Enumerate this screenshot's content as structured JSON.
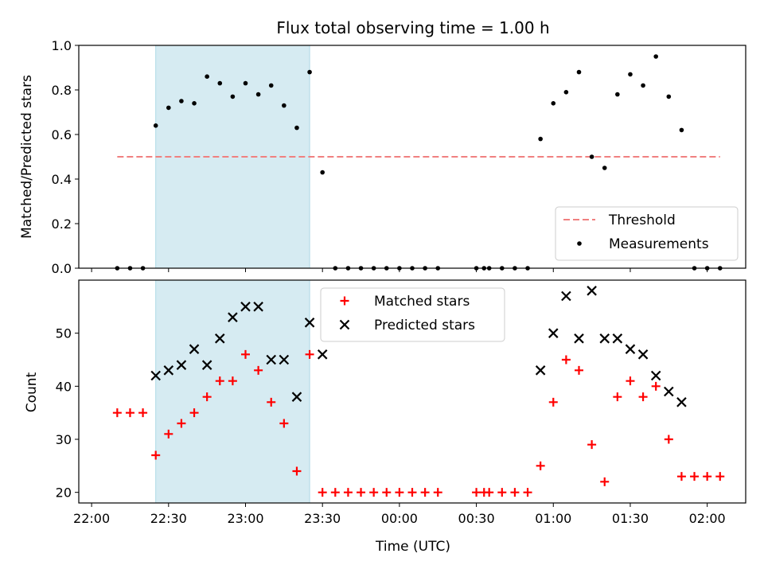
{
  "chart_data": [
    {
      "type": "scatter",
      "title": "Flux total observing time = 1.00 h",
      "xlabel": "",
      "ylabel": "Matched/Predicted stars",
      "ylim": [
        0,
        1.0
      ],
      "xlim": [
        "21:55",
        "02:15"
      ],
      "yticks": [
        "0.0",
        "0.2",
        "0.4",
        "0.6",
        "0.8",
        "1.0"
      ],
      "highlight_span": [
        "22:25",
        "23:25"
      ],
      "highlight_color": "#add8e6",
      "threshold": {
        "name": "Threshold",
        "value": 0.5,
        "x_range": [
          "22:10",
          "02:05"
        ],
        "color": "#f08080"
      },
      "legend": {
        "position": "lower-right",
        "entries": [
          "Threshold",
          "Measurements"
        ]
      },
      "series": [
        {
          "name": "Measurements",
          "marker": "dot",
          "color": "#000000",
          "points": [
            [
              "22:10",
              0
            ],
            [
              "22:15",
              0
            ],
            [
              "22:20",
              0
            ],
            [
              "22:25",
              0.64
            ],
            [
              "22:30",
              0.72
            ],
            [
              "22:35",
              0.75
            ],
            [
              "22:40",
              0.74
            ],
            [
              "22:45",
              0.86
            ],
            [
              "22:50",
              0.83
            ],
            [
              "22:55",
              0.77
            ],
            [
              "23:00",
              0.83
            ],
            [
              "23:05",
              0.78
            ],
            [
              "23:10",
              0.82
            ],
            [
              "23:15",
              0.73
            ],
            [
              "23:20",
              0.63
            ],
            [
              "23:25",
              0.88
            ],
            [
              "23:30",
              0.43
            ],
            [
              "23:35",
              0
            ],
            [
              "23:40",
              0
            ],
            [
              "23:45",
              0
            ],
            [
              "23:50",
              0
            ],
            [
              "23:55",
              0
            ],
            [
              "00:00",
              0
            ],
            [
              "00:05",
              0
            ],
            [
              "00:10",
              0
            ],
            [
              "00:15",
              0
            ],
            [
              "00:30",
              0
            ],
            [
              "00:33",
              0
            ],
            [
              "00:35",
              0
            ],
            [
              "00:40",
              0
            ],
            [
              "00:45",
              0
            ],
            [
              "00:50",
              0
            ],
            [
              "00:55",
              0.58
            ],
            [
              "01:00",
              0.74
            ],
            [
              "01:05",
              0.79
            ],
            [
              "01:10",
              0.88
            ],
            [
              "01:15",
              0.5
            ],
            [
              "01:20",
              0.45
            ],
            [
              "01:25",
              0.78
            ],
            [
              "01:30",
              0.87
            ],
            [
              "01:35",
              0.82
            ],
            [
              "01:40",
              0.95
            ],
            [
              "01:45",
              0.77
            ],
            [
              "01:50",
              0.62
            ],
            [
              "01:55",
              0
            ],
            [
              "02:00",
              0
            ],
            [
              "02:05",
              0
            ]
          ]
        }
      ]
    },
    {
      "type": "scatter",
      "title": "",
      "xlabel": "Time (UTC)",
      "ylabel": "Count",
      "ylim": [
        18,
        60
      ],
      "xlim": [
        "21:55",
        "02:15"
      ],
      "yticks": [
        "20",
        "30",
        "40",
        "50"
      ],
      "xticks": [
        "22:00",
        "22:30",
        "23:00",
        "23:30",
        "00:00",
        "00:30",
        "01:00",
        "01:30",
        "02:00"
      ],
      "highlight_span": [
        "22:25",
        "23:25"
      ],
      "highlight_color": "#add8e6",
      "legend": {
        "position": "upper-center",
        "entries": [
          "Matched stars",
          "Predicted stars"
        ]
      },
      "series": [
        {
          "name": "Matched stars",
          "marker": "plus",
          "color": "#ff0000",
          "points": [
            [
              "22:10",
              35
            ],
            [
              "22:15",
              35
            ],
            [
              "22:20",
              35
            ],
            [
              "22:25",
              27
            ],
            [
              "22:30",
              31
            ],
            [
              "22:35",
              33
            ],
            [
              "22:40",
              35
            ],
            [
              "22:45",
              38
            ],
            [
              "22:50",
              41
            ],
            [
              "22:55",
              41
            ],
            [
              "23:00",
              46
            ],
            [
              "23:05",
              43
            ],
            [
              "23:10",
              37
            ],
            [
              "23:15",
              33
            ],
            [
              "23:20",
              24
            ],
            [
              "23:25",
              46
            ],
            [
              "23:30",
              20
            ],
            [
              "23:35",
              20
            ],
            [
              "23:40",
              20
            ],
            [
              "23:45",
              20
            ],
            [
              "23:50",
              20
            ],
            [
              "23:55",
              20
            ],
            [
              "00:00",
              20
            ],
            [
              "00:05",
              20
            ],
            [
              "00:10",
              20
            ],
            [
              "00:15",
              20
            ],
            [
              "00:30",
              20
            ],
            [
              "00:33",
              20
            ],
            [
              "00:35",
              20
            ],
            [
              "00:40",
              20
            ],
            [
              "00:45",
              20
            ],
            [
              "00:50",
              20
            ],
            [
              "00:55",
              25
            ],
            [
              "01:00",
              37
            ],
            [
              "01:05",
              45
            ],
            [
              "01:10",
              43
            ],
            [
              "01:15",
              29
            ],
            [
              "01:20",
              22
            ],
            [
              "01:25",
              38
            ],
            [
              "01:30",
              41
            ],
            [
              "01:35",
              38
            ],
            [
              "01:40",
              40
            ],
            [
              "01:45",
              30
            ],
            [
              "01:50",
              23
            ],
            [
              "01:55",
              23
            ],
            [
              "02:00",
              23
            ],
            [
              "02:05",
              23
            ]
          ]
        },
        {
          "name": "Predicted stars",
          "marker": "x",
          "color": "#000000",
          "points": [
            [
              "22:25",
              42
            ],
            [
              "22:30",
              43
            ],
            [
              "22:35",
              44
            ],
            [
              "22:40",
              47
            ],
            [
              "22:45",
              44
            ],
            [
              "22:50",
              49
            ],
            [
              "22:55",
              53
            ],
            [
              "23:00",
              55
            ],
            [
              "23:05",
              55
            ],
            [
              "23:10",
              45
            ],
            [
              "23:15",
              45
            ],
            [
              "23:20",
              38
            ],
            [
              "23:25",
              52
            ],
            [
              "23:30",
              46
            ],
            [
              "00:55",
              43
            ],
            [
              "01:00",
              50
            ],
            [
              "01:05",
              57
            ],
            [
              "01:10",
              49
            ],
            [
              "01:15",
              58
            ],
            [
              "01:20",
              49
            ],
            [
              "01:25",
              49
            ],
            [
              "01:30",
              47
            ],
            [
              "01:35",
              46
            ],
            [
              "01:40",
              42
            ],
            [
              "01:45",
              39
            ],
            [
              "01:50",
              37
            ]
          ]
        }
      ]
    }
  ]
}
